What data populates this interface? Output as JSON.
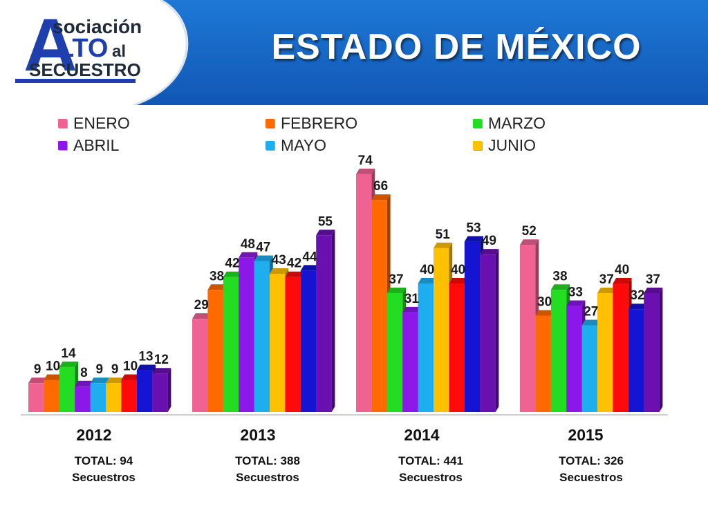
{
  "header": {
    "title": "ESTADO DE MÉXICO",
    "logo": {
      "line1": "sociación",
      "letterA": "A",
      "line2": "LTO",
      "line2b": "al",
      "line3": "SECUESTRO"
    },
    "colors": {
      "band": "#1565c0",
      "band_light": "#1e78d6",
      "logo_blue": "#1f3fae"
    }
  },
  "legend": [
    {
      "label": "ENERO",
      "color": "#f06292"
    },
    {
      "label": "FEBRERO",
      "color": "#ff6a00"
    },
    {
      "label": "MARZO",
      "color": "#22dd22"
    },
    {
      "label": "ABRIL",
      "color": "#8b18e8"
    },
    {
      "label": "MAYO",
      "color": "#1eaef0"
    },
    {
      "label": "JUNIO",
      "color": "#ffc000"
    }
  ],
  "chart_data": {
    "type": "bar",
    "title": "",
    "categories": [
      "2012",
      "2013",
      "2014",
      "2015"
    ],
    "series": [
      {
        "name": "ENERO",
        "color": "#f06292",
        "values": [
          9,
          29,
          74,
          52
        ]
      },
      {
        "name": "FEBRERO",
        "color": "#ff6a00",
        "values": [
          10,
          38,
          66,
          30
        ]
      },
      {
        "name": "MARZO",
        "color": "#22dd22",
        "values": [
          14,
          42,
          37,
          38
        ]
      },
      {
        "name": "ABRIL",
        "color": "#8b18e8",
        "values": [
          8,
          48,
          31,
          33
        ]
      },
      {
        "name": "MAYO",
        "color": "#1eaef0",
        "values": [
          9,
          47,
          40,
          27
        ]
      },
      {
        "name": "JUNIO",
        "color": "#ffc000",
        "values": [
          9,
          43,
          51,
          37
        ]
      },
      {
        "name": "",
        "color": "#ff0a0a",
        "values": [
          10,
          42,
          40,
          40
        ]
      },
      {
        "name": "",
        "color": "#1414d2",
        "values": [
          13,
          44,
          53,
          32
        ]
      },
      {
        "name": "",
        "color": "#6a10b0",
        "values": [
          12,
          55,
          49,
          37
        ]
      }
    ],
    "ylim": [
      0,
      80
    ],
    "grid": false,
    "legend_position": "top"
  },
  "totals": [
    {
      "year": "2012",
      "line1": "TOTAL: 94",
      "line2": "Secuestros"
    },
    {
      "year": "2013",
      "line1": "TOTAL: 388",
      "line2": "Secuestros"
    },
    {
      "year": "2014",
      "line1": "TOTAL: 441",
      "line2": "Secuestros"
    },
    {
      "year": "2015",
      "line1": "TOTAL: 326",
      "line2": "Secuestros"
    }
  ]
}
